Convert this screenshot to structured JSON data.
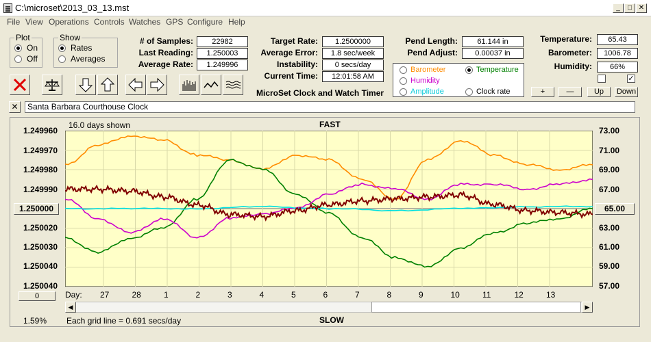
{
  "window": {
    "title": "C:\\microset\\2013_03_13.mst"
  },
  "menu": [
    "File",
    "View",
    "Operations",
    "Controls",
    "Watches",
    "GPS",
    "Configure",
    "Help"
  ],
  "plot": {
    "title": "Plot",
    "on": "On",
    "off": "Off"
  },
  "show": {
    "title": "Show",
    "rates": "Rates",
    "averages": "Averages"
  },
  "stats": {
    "samples": {
      "label": "# of Samples:",
      "value": "22982"
    },
    "last_reading": {
      "label": "Last Reading:",
      "value": "1.250003"
    },
    "average_rate": {
      "label": "Average Rate:",
      "value": "1.249996"
    },
    "target_rate": {
      "label": "Target Rate:",
      "value": "1.2500000"
    },
    "average_error": {
      "label": "Average Error:",
      "value": "1.8 sec/week"
    },
    "instability": {
      "label": "Instability:",
      "value": "0 secs/day"
    },
    "current_time": {
      "label": "Current Time:",
      "value": "12:01:58 AM"
    },
    "pend_length": {
      "label": "Pend Length:",
      "value": "61.144 in"
    },
    "pend_adjust": {
      "label": "Pend Adjust:",
      "value": "0.00037 in"
    },
    "temperature": {
      "label": "Temperature:",
      "value": "65.43"
    },
    "barometer": {
      "label": "Barometer:",
      "value": "1006.78"
    },
    "humidity": {
      "label": "Humidity:",
      "value": "66%"
    }
  },
  "app_title": "MicroSet Clock and Watch Timer",
  "legend": {
    "barometer": "Barometer",
    "temperature": "Temperature",
    "humidity": "Humidity",
    "amplitude": "Amplitude",
    "clock_rate": "Clock rate"
  },
  "sensor_buttons": {
    "plus": "+",
    "minus": "—",
    "up": "Up",
    "down": "Down"
  },
  "clock_name": "Santa Barbara Courthouse Clock",
  "colors": {
    "barometer": "#ff8c00",
    "temperature": "#008000",
    "humidity": "#cc00cc",
    "amplitude": "#00e0e0",
    "clock_rate": "#800000",
    "plot_bg": "#ffffc8"
  },
  "chart_data": {
    "type": "line",
    "top_label": "FAST",
    "bottom_label": "SLOW",
    "days_shown": "16.0 days shown",
    "grid_note": "Each grid line = 0.691 secs/day",
    "percent": "1.59%",
    "x_label": "Day:",
    "x_ticks": [
      "27",
      "28",
      "1",
      "2",
      "3",
      "4",
      "5",
      "6",
      "7",
      "8",
      "9",
      "10",
      "11",
      "12",
      "13"
    ],
    "y_left_ticks": [
      "1.249960",
      "1.249970",
      "1.249980",
      "1.249990",
      "1.250000",
      "1.250020",
      "1.250030",
      "1.250040"
    ],
    "y_left_center_tick": "1.250000",
    "y_right_ticks": [
      "73.00",
      "71.00",
      "69.00",
      "67.00",
      "65.00",
      "63.00",
      "61.00",
      "59.00",
      "57.00"
    ],
    "y_right_center_tick": "65.00",
    "bottom_left_box": "0",
    "series": [
      {
        "name": "Barometer",
        "x": [
          0,
          1,
          2,
          3,
          4,
          5,
          6,
          7,
          8,
          9,
          10,
          11,
          12,
          13,
          14,
          15,
          16
        ],
        "y": [
          69.5,
          71.5,
          72.5,
          72.0,
          70.5,
          70.0,
          69.0,
          70.5,
          70.0,
          68.0,
          66.0,
          70.0,
          72.0,
          70.5,
          69.5,
          69.0,
          69.5
        ]
      },
      {
        "name": "Temperature",
        "x": [
          0,
          1,
          2,
          3,
          4,
          5,
          6,
          7,
          8,
          9,
          10,
          11,
          12,
          13,
          14,
          15,
          16
        ],
        "y": [
          62.0,
          60.5,
          62.0,
          63.0,
          66.0,
          70.0,
          69.0,
          66.5,
          64.5,
          62.0,
          60.0,
          59.0,
          61.0,
          62.5,
          63.5,
          64.0,
          65.0
        ]
      },
      {
        "name": "Humidity",
        "x": [
          0,
          1,
          2,
          3,
          4,
          5,
          6,
          7,
          8,
          9,
          10,
          11,
          12,
          13,
          14,
          15,
          16
        ],
        "y": [
          66.0,
          64.0,
          62.5,
          64.0,
          62.0,
          64.0,
          64.5,
          65.0,
          66.5,
          67.5,
          67.0,
          66.0,
          67.5,
          67.5,
          67.0,
          67.5,
          68.0
        ]
      },
      {
        "name": "Amplitude",
        "x": [
          0,
          2,
          4,
          6,
          8,
          10,
          12,
          14,
          16
        ],
        "y": [
          1.25,
          1.25,
          1.25,
          1.249999,
          1.25,
          1.250001,
          1.25,
          1.249999,
          1.249999
        ]
      },
      {
        "name": "Clock rate",
        "x": [
          0,
          1,
          2,
          3,
          4,
          5,
          6,
          7,
          8,
          9,
          10,
          11,
          12,
          13,
          14,
          15,
          16
        ],
        "y": [
          1.24999,
          1.24999,
          1.249991,
          1.249994,
          1.249998,
          1.250003,
          1.250004,
          1.250001,
          1.249998,
          1.249996,
          1.249995,
          1.249994,
          1.249993,
          1.249998,
          1.250001,
          1.250002,
          1.250003
        ]
      }
    ]
  }
}
